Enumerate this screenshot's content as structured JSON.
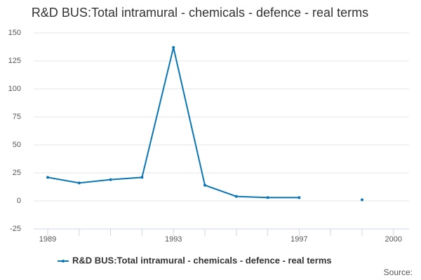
{
  "chart_data": {
    "type": "line",
    "title": "R&D BUS:Total intramural - chemicals - defence - real terms",
    "categories": [
      "1989",
      null,
      null,
      null,
      "1993",
      null,
      null,
      null,
      "1997",
      null,
      null,
      "2000"
    ],
    "series": [
      {
        "name": "R&D BUS:Total intramural - chemicals - defence - real terms",
        "color": "#0a76b4",
        "values": [
          21,
          16,
          19,
          21,
          137,
          14,
          4,
          3,
          3,
          null,
          1,
          null
        ]
      }
    ],
    "ylim": [
      -25,
      150
    ],
    "yticks": [
      -25,
      0,
      25,
      50,
      75,
      100,
      125,
      150
    ],
    "grid": true,
    "legend": "bottom",
    "source": "Source:"
  }
}
